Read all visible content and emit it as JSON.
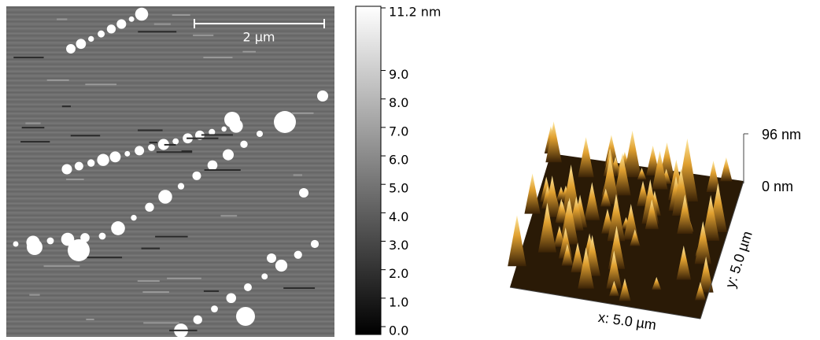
{
  "scale_bar": {
    "label": "2 µm"
  },
  "colorbar": {
    "lim": [
      0,
      11.2
    ],
    "ticks": [
      {
        "value": 11.2,
        "label": "11.2 nm"
      },
      {
        "value": 9,
        "label": "9.0"
      },
      {
        "value": 8,
        "label": "8.0"
      },
      {
        "value": 7,
        "label": "7.0"
      },
      {
        "value": 6,
        "label": "6.0"
      },
      {
        "value": 5,
        "label": "5.0"
      },
      {
        "value": 4,
        "label": "4.0"
      },
      {
        "value": 3,
        "label": "3.0"
      },
      {
        "value": 2,
        "label": "2.0"
      },
      {
        "value": 1,
        "label": "1.0"
      },
      {
        "value": 0,
        "label": "0.0"
      }
    ]
  },
  "surface": {
    "z_top": "96 nm",
    "z_bottom": "0 nm",
    "x_label": "x: 5.0 µm",
    "y_label": "y: 5.0 µm"
  }
}
